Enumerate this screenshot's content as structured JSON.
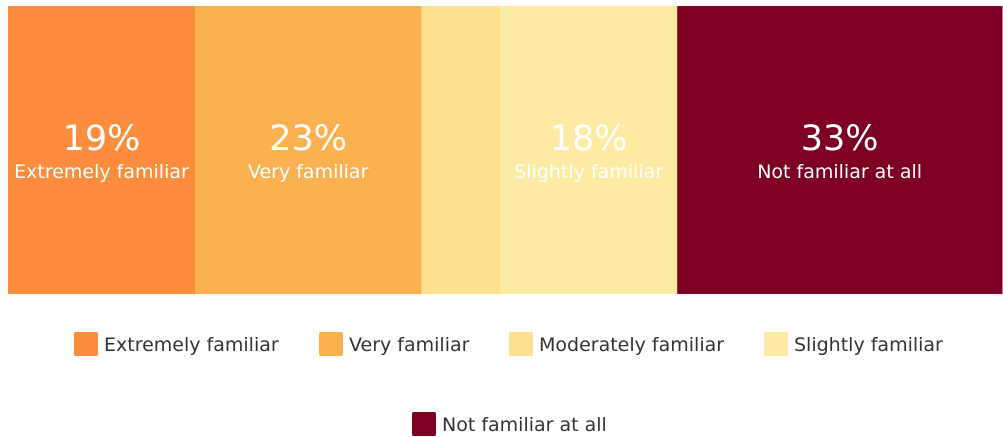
{
  "chart_data": {
    "type": "bar",
    "orientation": "horizontal-stacked",
    "categories": [
      "Extremely familiar",
      "Very familiar",
      "Moderately familiar",
      "Slightly familiar",
      "Not familiar at all"
    ],
    "values": [
      19,
      23,
      8,
      18,
      33
    ],
    "value_labels": [
      "19%",
      "23%",
      "",
      "18%",
      "33%"
    ],
    "segment_text": [
      "Extremely familiar",
      "Very familiar",
      "",
      "Slightly familiar",
      "Not familiar at all"
    ],
    "colors": [
      "#fb8d3d",
      "#fcb150",
      "#fee08f",
      "#feeba3",
      "#7d0023"
    ],
    "legend": {
      "placement": "bottom",
      "entries": [
        "Extremely familiar",
        "Very familiar",
        "Moderately familiar",
        "Slightly familiar",
        "Not familiar at all"
      ]
    },
    "grid": false
  }
}
